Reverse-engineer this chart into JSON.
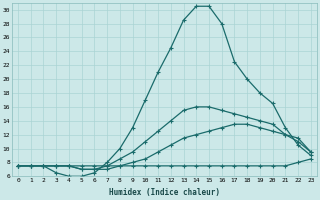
{
  "xlabel": "Humidex (Indice chaleur)",
  "ylabel": "",
  "xlim": [
    -0.5,
    23.5
  ],
  "ylim": [
    6,
    31
  ],
  "xticks": [
    0,
    1,
    2,
    3,
    4,
    5,
    6,
    7,
    8,
    9,
    10,
    11,
    12,
    13,
    14,
    15,
    16,
    17,
    18,
    19,
    20,
    21,
    22,
    23
  ],
  "yticks": [
    6,
    8,
    10,
    12,
    14,
    16,
    18,
    20,
    22,
    24,
    26,
    28,
    30
  ],
  "bg_color": "#cce8e8",
  "line_color": "#1a6b6b",
  "grid_color": "#aad4d4",
  "line1_y": [
    7.5,
    7.5,
    7.5,
    7.5,
    7.5,
    7.5,
    7.5,
    7.5,
    7.5,
    7.5,
    7.5,
    7.5,
    7.5,
    7.5,
    7.5,
    7.5,
    7.5,
    7.5,
    7.5,
    7.5,
    7.5,
    7.5,
    8.0,
    8.5
  ],
  "line2_y": [
    7.5,
    7.5,
    7.5,
    7.5,
    7.5,
    7.0,
    7.0,
    7.0,
    7.5,
    8.0,
    8.5,
    9.5,
    10.5,
    11.5,
    12.0,
    12.5,
    13.0,
    13.5,
    13.5,
    13.0,
    12.5,
    12.0,
    11.0,
    9.5
  ],
  "line3_y": [
    7.5,
    7.5,
    7.5,
    7.5,
    7.5,
    7.0,
    7.0,
    7.5,
    8.5,
    9.5,
    11.0,
    12.5,
    14.0,
    15.5,
    16.0,
    16.0,
    15.5,
    15.0,
    14.5,
    14.0,
    13.5,
    12.0,
    11.5,
    9.5
  ],
  "line4_y": [
    7.5,
    7.5,
    7.5,
    6.5,
    6.0,
    6.0,
    6.5,
    8.0,
    10.0,
    13.0,
    17.0,
    21.0,
    24.5,
    28.5,
    30.5,
    30.5,
    28.0,
    22.5,
    20.0,
    18.0,
    16.5,
    13.0,
    10.5,
    9.0
  ]
}
